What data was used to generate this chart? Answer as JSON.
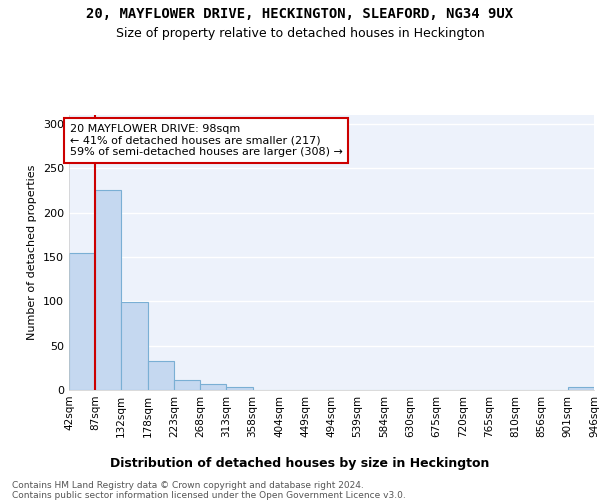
{
  "title": "20, MAYFLOWER DRIVE, HECKINGTON, SLEAFORD, NG34 9UX",
  "subtitle": "Size of property relative to detached houses in Heckington",
  "xlabel": "Distribution of detached houses by size in Heckington",
  "ylabel": "Number of detached properties",
  "bar_color": "#c5d8f0",
  "bar_edge_color": "#7aafd4",
  "bins": [
    42,
    87,
    132,
    178,
    223,
    268,
    313,
    358,
    404,
    449,
    494,
    539,
    584,
    630,
    675,
    720,
    765,
    810,
    856,
    901,
    946
  ],
  "bin_labels": [
    "42sqm",
    "87sqm",
    "132sqm",
    "178sqm",
    "223sqm",
    "268sqm",
    "313sqm",
    "358sqm",
    "404sqm",
    "449sqm",
    "494sqm",
    "539sqm",
    "584sqm",
    "630sqm",
    "675sqm",
    "720sqm",
    "765sqm",
    "810sqm",
    "856sqm",
    "901sqm",
    "946sqm"
  ],
  "values": [
    155,
    225,
    99,
    33,
    11,
    7,
    3,
    0,
    0,
    0,
    0,
    0,
    0,
    0,
    0,
    0,
    0,
    0,
    0,
    3
  ],
  "ylim": [
    0,
    310
  ],
  "yticks": [
    0,
    50,
    100,
    150,
    200,
    250,
    300
  ],
  "annotation_text": "20 MAYFLOWER DRIVE: 98sqm\n← 41% of detached houses are smaller (217)\n59% of semi-detached houses are larger (308) →",
  "property_line_x": 87,
  "footer_line1": "Contains HM Land Registry data © Crown copyright and database right 2024.",
  "footer_line2": "Contains public sector information licensed under the Open Government Licence v3.0.",
  "background_color": "#edf2fb",
  "grid_color": "#ffffff",
  "fig_bg_color": "#ffffff"
}
